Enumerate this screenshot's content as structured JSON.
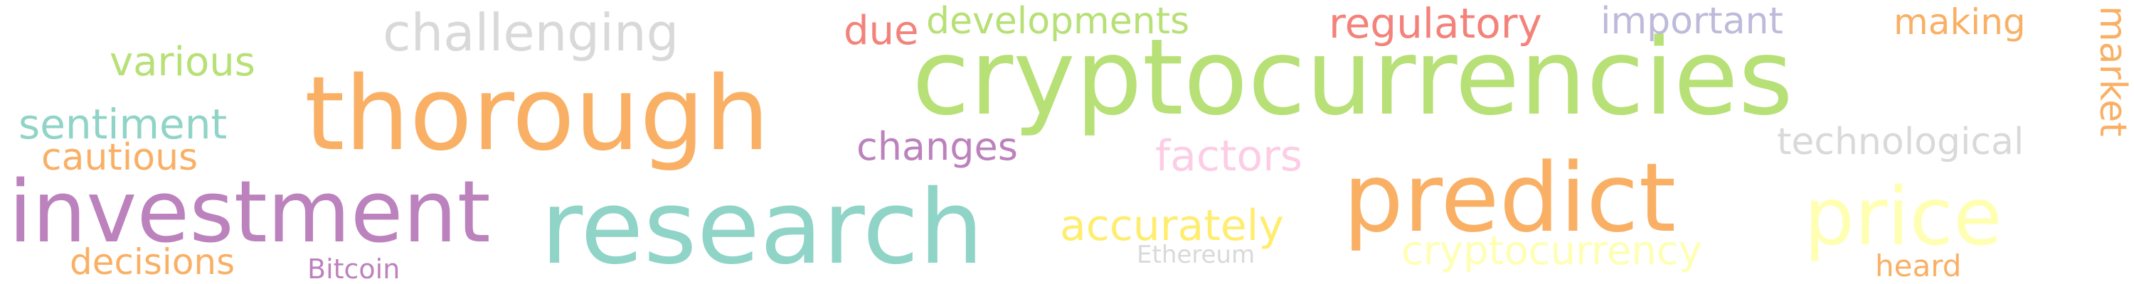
{
  "words": [
    {
      "text": "cryptocurrencies",
      "color": "#b7e076"
    },
    {
      "text": "thorough",
      "color": "#f9b065"
    },
    {
      "text": "research",
      "color": "#8fd4c6"
    },
    {
      "text": "investment",
      "color": "#bc82bd"
    },
    {
      "text": "predict",
      "color": "#f9b065"
    },
    {
      "text": "price",
      "color": "#ffffb3"
    },
    {
      "text": "challenging",
      "color": "#d9d9d9"
    },
    {
      "text": "developments",
      "color": "#b7e076"
    },
    {
      "text": "regulatory",
      "color": "#f3827a"
    },
    {
      "text": "important",
      "color": "#bebada"
    },
    {
      "text": "making",
      "color": "#f9b065"
    },
    {
      "text": "market",
      "color": "#f9b065"
    },
    {
      "text": "due",
      "color": "#f3827a"
    },
    {
      "text": "various",
      "color": "#b7e076"
    },
    {
      "text": "sentiment",
      "color": "#8fd4c6"
    },
    {
      "text": "cautious",
      "color": "#f9b065"
    },
    {
      "text": "changes",
      "color": "#bc82bd"
    },
    {
      "text": "factors",
      "color": "#fccde5"
    },
    {
      "text": "technological",
      "color": "#d9d9d9"
    },
    {
      "text": "accurately",
      "color": "#ffed6f"
    },
    {
      "text": "cryptocurrency",
      "color": "#ffffb3"
    },
    {
      "text": "decisions",
      "color": "#f9b065"
    },
    {
      "text": "Bitcoin",
      "color": "#bc82bd"
    },
    {
      "text": "Ethereum",
      "color": "#d9d9d9"
    },
    {
      "text": "heard",
      "color": "#f9b065"
    }
  ]
}
